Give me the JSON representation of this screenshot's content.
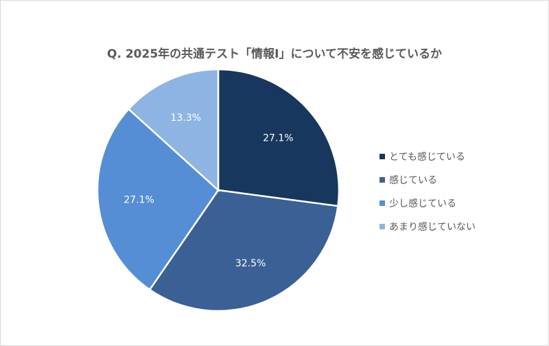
{
  "chart_data": {
    "type": "pie",
    "title": "Q. 2025年の共通テスト「情報Ⅰ」について不安を感じているか",
    "categories": [
      "とても感じている",
      "感じている",
      "少し感じている",
      "あまり感じていない"
    ],
    "values": [
      27.1,
      32.5,
      27.1,
      13.3
    ],
    "data_labels": [
      "27.1%",
      "32.5%",
      "27.1%",
      "13.3%"
    ],
    "colors": [
      "#17375E",
      "#3A6095",
      "#558ED5",
      "#8EB4E3"
    ],
    "legend_position": "right",
    "start": "12 o'clock, clockwise"
  }
}
